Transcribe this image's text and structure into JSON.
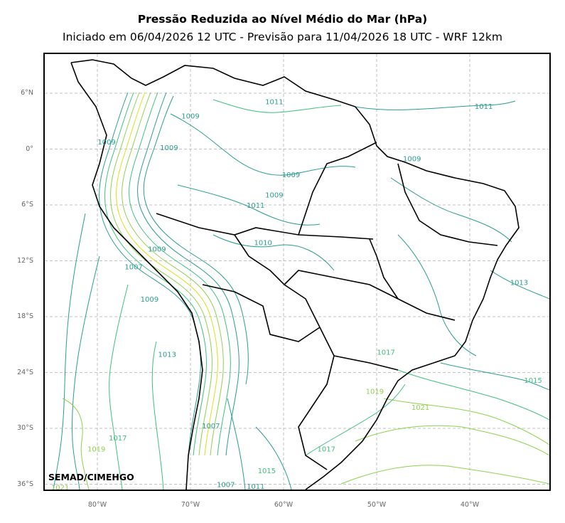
{
  "title": "Pressão Reduzida ao Nível Médio do Mar (hPa)",
  "subtitle": "Iniciado em 06/04/2026 12 UTC - Previsão para 11/04/2026 18 UTC - WRF 12km",
  "credit": "SEMAD/CIMEHGO",
  "lat_ticks": [
    "6°N",
    "0°",
    "6°S",
    "12°S",
    "18°S",
    "24°S",
    "30°S",
    "36°S"
  ],
  "lon_ticks": [
    "80°W",
    "70°W",
    "60°W",
    "50°W",
    "40°W"
  ],
  "contour_labels": [
    {
      "text": "1011",
      "lon": -38.5,
      "lat": 4.3
    },
    {
      "text": "1011",
      "lon": -61.0,
      "lat": 4.8
    },
    {
      "text": "1009",
      "lon": -70.0,
      "lat": 3.3
    },
    {
      "text": "1009",
      "lon": -79.0,
      "lat": 0.5
    },
    {
      "text": "1009",
      "lon": -72.3,
      "lat": -0.1
    },
    {
      "text": "1009",
      "lon": -59.2,
      "lat": -3.0
    },
    {
      "text": "1009",
      "lon": -61.0,
      "lat": -5.2
    },
    {
      "text": "1009",
      "lon": -46.2,
      "lat": -1.3
    },
    {
      "text": "1011",
      "lon": -63.0,
      "lat": -6.3
    },
    {
      "text": "1010",
      "lon": -62.2,
      "lat": -10.3
    },
    {
      "text": "1009",
      "lon": -73.6,
      "lat": -11.0
    },
    {
      "text": "1007",
      "lon": -76.1,
      "lat": -12.9
    },
    {
      "text": "1009",
      "lon": -74.4,
      "lat": -16.4
    },
    {
      "text": "1013",
      "lon": -72.5,
      "lat": -22.3
    },
    {
      "text": "1013",
      "lon": -34.7,
      "lat": -14.6
    },
    {
      "text": "1017",
      "lon": -49.0,
      "lat": -22.1
    },
    {
      "text": "1019",
      "lon": -50.2,
      "lat": -26.3
    },
    {
      "text": "1015",
      "lon": -33.2,
      "lat": -25.1
    },
    {
      "text": "1021",
      "lon": -45.3,
      "lat": -28.0
    },
    {
      "text": "1017",
      "lon": -77.8,
      "lat": -31.3
    },
    {
      "text": "1019",
      "lon": -80.1,
      "lat": -32.5
    },
    {
      "text": "1007",
      "lon": -67.8,
      "lat": -30.0
    },
    {
      "text": "1017",
      "lon": -55.4,
      "lat": -32.5
    },
    {
      "text": "1015",
      "lon": -61.8,
      "lat": -34.8
    },
    {
      "text": "1007",
      "lon": -66.2,
      "lat": -36.3
    },
    {
      "text": "1011",
      "lon": -63.0,
      "lat": -36.5
    },
    {
      "text": "1021",
      "lon": -84.0,
      "lat": -36.6
    }
  ],
  "colors": {
    "low": "#2a9d8f",
    "mid": "#3fbf7f",
    "high": "#8fd14f",
    "peak": "#d8e219",
    "border": "#000000",
    "grid": "#b0b0b0"
  }
}
